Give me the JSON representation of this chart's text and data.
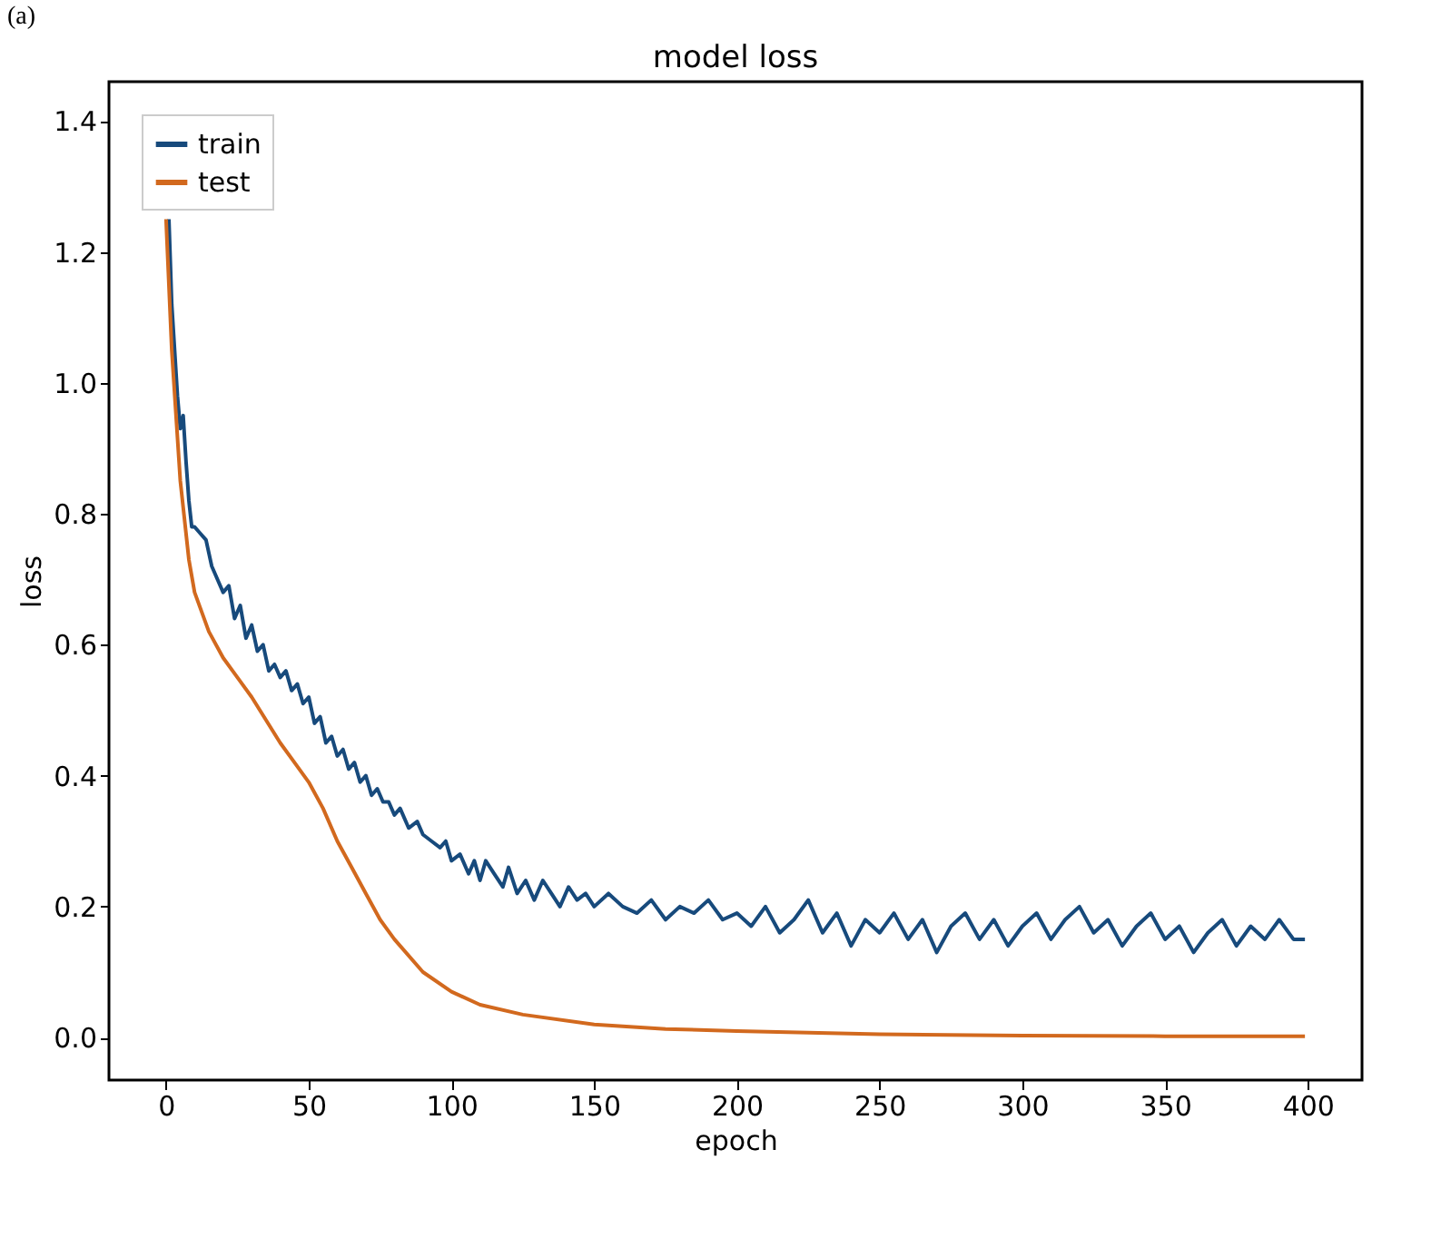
{
  "chart_data": {
    "type": "line",
    "title": "model loss",
    "xlabel": "epoch",
    "ylabel": "loss",
    "annotations": [
      "(a)"
    ],
    "xlim": [
      -20,
      419
    ],
    "xticks": [
      0,
      50,
      100,
      150,
      200,
      250,
      300,
      350,
      400
    ],
    "ylim": [
      -0.065,
      1.46
    ],
    "yticks": [
      {
        "value": 0,
        "label": "0.0"
      },
      0.2,
      0.4,
      0.6,
      0.8,
      {
        "value": 1,
        "label": "1.0"
      },
      1.2,
      1.4
    ],
    "grid": false,
    "legend": "top left",
    "series": [
      {
        "name": "train",
        "color": "#174a7c",
        "x": [
          1,
          2,
          3,
          4,
          5,
          6,
          7,
          8,
          9,
          10,
          12,
          14,
          16,
          18,
          20,
          22,
          24,
          26,
          28,
          30,
          32,
          34,
          36,
          38,
          40,
          42,
          44,
          46,
          48,
          50,
          52,
          54,
          56,
          58,
          60,
          62,
          64,
          66,
          68,
          70,
          72,
          74,
          76,
          78,
          80,
          82,
          85,
          88,
          90,
          93,
          96,
          98,
          100,
          103,
          106,
          108,
          110,
          112,
          115,
          118,
          120,
          123,
          126,
          129,
          132,
          135,
          138,
          141,
          144,
          147,
          150,
          155,
          160,
          165,
          170,
          175,
          180,
          185,
          190,
          195,
          200,
          205,
          210,
          215,
          220,
          225,
          230,
          235,
          240,
          245,
          250,
          255,
          260,
          265,
          270,
          275,
          280,
          285,
          290,
          295,
          300,
          305,
          310,
          315,
          320,
          325,
          330,
          335,
          340,
          345,
          350,
          355,
          360,
          365,
          370,
          375,
          380,
          385,
          390,
          395,
          399
        ],
        "values": [
          1.25,
          1.12,
          1.05,
          0.98,
          0.93,
          0.95,
          0.88,
          0.82,
          0.78,
          0.78,
          0.77,
          0.76,
          0.72,
          0.7,
          0.68,
          0.69,
          0.64,
          0.66,
          0.61,
          0.63,
          0.59,
          0.6,
          0.56,
          0.57,
          0.55,
          0.56,
          0.53,
          0.54,
          0.51,
          0.52,
          0.48,
          0.49,
          0.45,
          0.46,
          0.43,
          0.44,
          0.41,
          0.42,
          0.39,
          0.4,
          0.37,
          0.38,
          0.36,
          0.36,
          0.34,
          0.35,
          0.32,
          0.33,
          0.31,
          0.3,
          0.29,
          0.3,
          0.27,
          0.28,
          0.25,
          0.27,
          0.24,
          0.27,
          0.25,
          0.23,
          0.26,
          0.22,
          0.24,
          0.21,
          0.24,
          0.22,
          0.2,
          0.23,
          0.21,
          0.22,
          0.2,
          0.22,
          0.2,
          0.19,
          0.21,
          0.18,
          0.2,
          0.19,
          0.21,
          0.18,
          0.19,
          0.17,
          0.2,
          0.16,
          0.18,
          0.21,
          0.16,
          0.19,
          0.14,
          0.18,
          0.16,
          0.19,
          0.15,
          0.18,
          0.13,
          0.17,
          0.19,
          0.15,
          0.18,
          0.14,
          0.17,
          0.19,
          0.15,
          0.18,
          0.2,
          0.16,
          0.18,
          0.14,
          0.17,
          0.19,
          0.15,
          0.17,
          0.13,
          0.16,
          0.18,
          0.14,
          0.17,
          0.15,
          0.18,
          0.15,
          0.15
        ]
      },
      {
        "name": "test",
        "color": "#d2691e",
        "x": [
          0,
          2,
          5,
          8,
          10,
          15,
          20,
          25,
          30,
          35,
          40,
          45,
          50,
          55,
          60,
          65,
          70,
          75,
          80,
          90,
          100,
          110,
          125,
          150,
          175,
          200,
          250,
          300,
          350,
          399
        ],
        "values": [
          1.25,
          1.05,
          0.85,
          0.73,
          0.68,
          0.62,
          0.58,
          0.55,
          0.52,
          0.485,
          0.45,
          0.42,
          0.39,
          0.35,
          0.3,
          0.26,
          0.22,
          0.18,
          0.15,
          0.1,
          0.07,
          0.05,
          0.035,
          0.02,
          0.013,
          0.01,
          0.005,
          0.003,
          0.002,
          0.002
        ]
      }
    ]
  }
}
